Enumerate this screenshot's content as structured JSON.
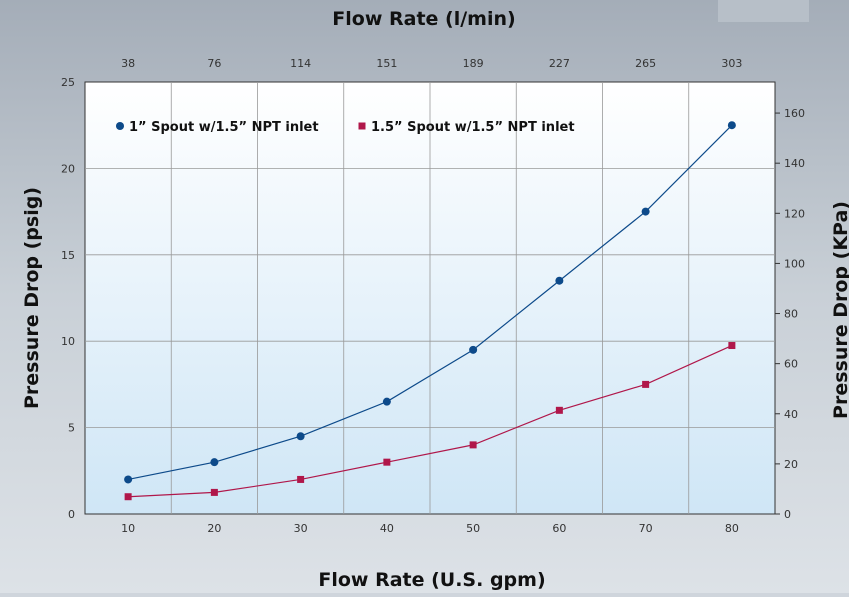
{
  "chart_data": {
    "type": "line",
    "title": "",
    "top_axis_label": "Flow Rate (l/min)",
    "xlabel": "Flow Rate (U.S. gpm)",
    "ylabel": "Pressure Drop (psig)",
    "y2label": "Pressure Drop (KPa)",
    "x": [
      10,
      20,
      30,
      40,
      50,
      60,
      70,
      80
    ],
    "x_tick_labels": [
      "10",
      "20",
      "30",
      "40",
      "50",
      "60",
      "70",
      "80"
    ],
    "x_top_tick_labels": [
      "38",
      "76",
      "114",
      "151",
      "189",
      "227",
      "265",
      "303"
    ],
    "xlim": [
      5,
      85
    ],
    "ylim": [
      0,
      25
    ],
    "y_ticks": [
      0,
      5,
      10,
      15,
      20,
      25
    ],
    "y_tick_labels": [
      "0",
      "5",
      "10",
      "15",
      "20",
      "25"
    ],
    "y2lim": [
      0,
      172.4
    ],
    "y2_ticks": [
      0,
      20,
      40,
      60,
      80,
      100,
      120,
      140,
      160
    ],
    "y2_tick_labels": [
      "0",
      "20",
      "40",
      "60",
      "80",
      "100",
      "120",
      "140",
      "160"
    ],
    "grid": true,
    "legend_position": "top-left",
    "series": [
      {
        "name": "1” Spout w/1.5” NPT inlet",
        "values": [
          2.0,
          3.0,
          4.5,
          6.5,
          9.5,
          13.5,
          17.5,
          22.5
        ],
        "color": "#0d4a8a",
        "marker": "circle"
      },
      {
        "name": "1.5” Spout w/1.5” NPT inlet",
        "values": [
          1.0,
          1.25,
          2.0,
          3.0,
          4.0,
          6.0,
          7.5,
          9.75
        ],
        "color": "#b0174a",
        "marker": "square"
      }
    ]
  }
}
